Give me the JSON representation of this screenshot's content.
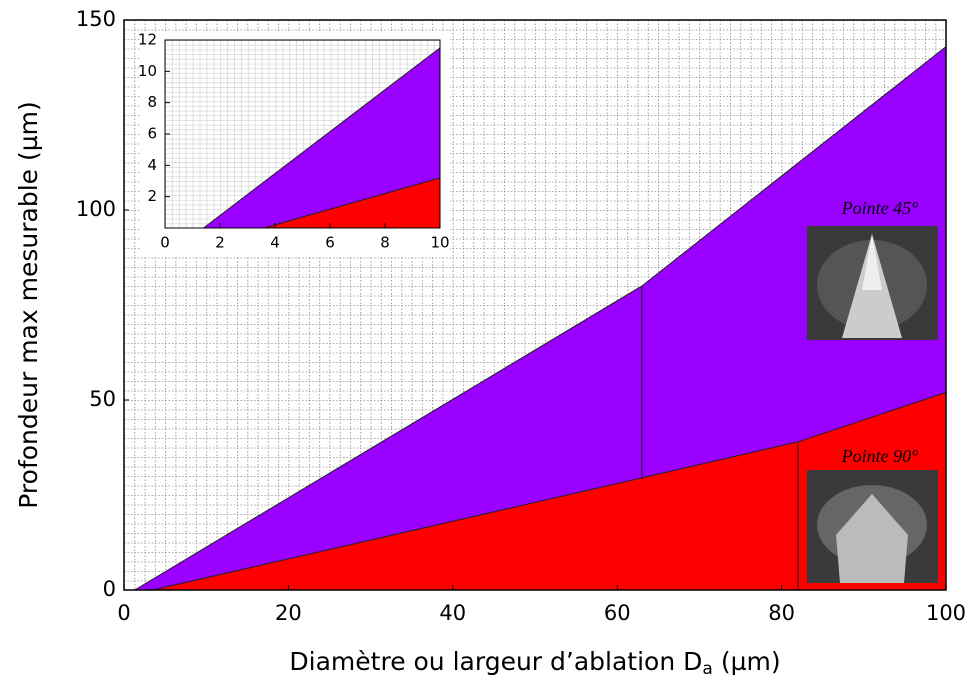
{
  "chart_data": {
    "type": "area",
    "ylabel": "Profondeur max mesurable (µm)",
    "xlabel": [
      "Diamètre ou largeur d’ablation D",
      "a",
      "(µm)"
    ],
    "xlim": [
      0,
      100
    ],
    "xticks": [
      0,
      20,
      40,
      60,
      80,
      100
    ],
    "ylim": [
      0,
      150
    ],
    "yticks": [
      0,
      50,
      100,
      150
    ],
    "grid": true,
    "series": [
      {
        "color": "#9900ff",
        "x": [
          1.3,
          63,
          100
        ],
        "values": [
          0,
          80,
          143
        ]
      },
      {
        "color": "#ff0000",
        "x": [
          3.5,
          63,
          82,
          100
        ],
        "values": [
          0,
          29.5,
          39,
          52
        ]
      }
    ],
    "annotations": [
      "Pointe 45°",
      "Pointe 90°"
    ],
    "inset": {
      "type": "area",
      "xlim": [
        0,
        10
      ],
      "xticks": [
        0,
        2,
        4,
        6,
        8,
        10
      ],
      "ylim": [
        0,
        12
      ],
      "yticks": [
        2,
        4,
        6,
        8,
        10,
        12
      ],
      "series": [
        {
          "color": "#9900ff",
          "x": [
            1.4,
            10
          ],
          "values": [
            0,
            11.5
          ]
        },
        {
          "color": "#ff0000",
          "x": [
            3.6,
            10
          ],
          "values": [
            0,
            3.2
          ]
        }
      ]
    }
  }
}
